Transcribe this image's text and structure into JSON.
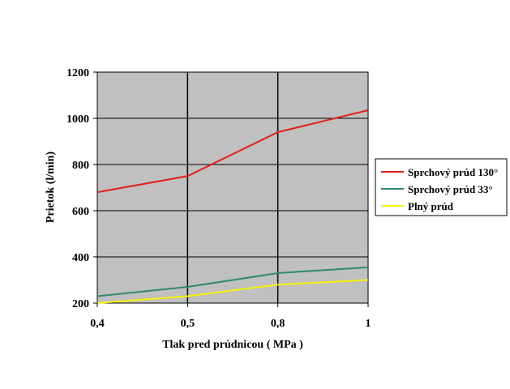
{
  "chart_data": {
    "type": "line",
    "x": [
      "0,4",
      "0,5",
      "0,8",
      "1"
    ],
    "xlabel": "Tlak pred prúdnicou  ( MPa )",
    "ylabel": "Prietok (l/min)",
    "ylim": [
      200,
      1200
    ],
    "yticks": [
      200,
      400,
      600,
      800,
      1000,
      1200
    ],
    "grid": true,
    "plot_background": "#c0c0c0",
    "legend_position": "right",
    "series": [
      {
        "name": "Sprchový prúd 130°",
        "color": "#e0201b",
        "values": [
          680,
          750,
          940,
          1035
        ]
      },
      {
        "name": "Sprchový prúd 33°",
        "color": "#2e8b66",
        "values": [
          230,
          270,
          330,
          355
        ]
      },
      {
        "name": "Plný prúd",
        "color": "#f2f20a",
        "values": [
          200,
          230,
          280,
          300
        ]
      }
    ]
  }
}
